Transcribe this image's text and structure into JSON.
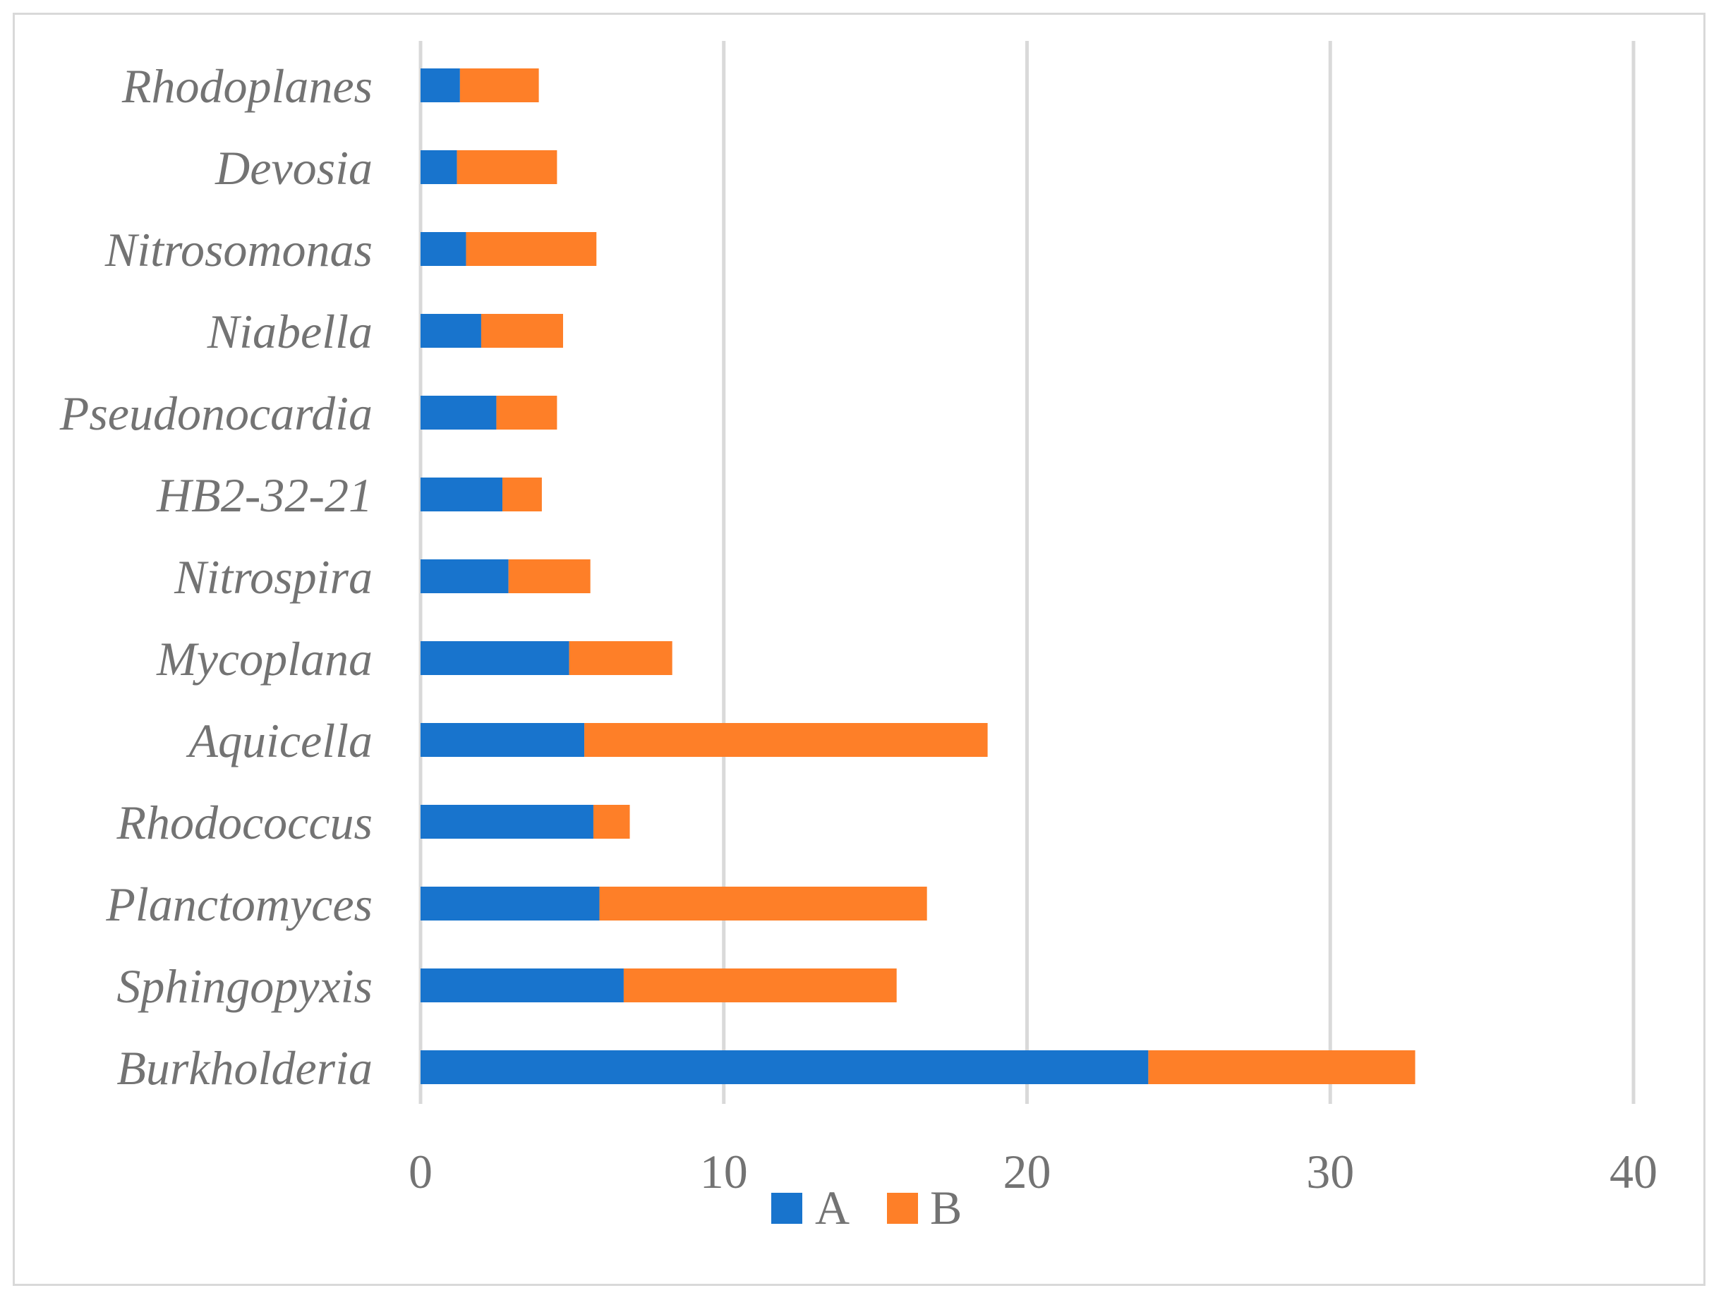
{
  "chart_data": {
    "type": "bar",
    "orientation": "horizontal",
    "stacked": true,
    "title": "",
    "xlabel": "",
    "ylabel": "",
    "categories": [
      "Burkholderia",
      "Sphingopyxis",
      "Planctomyces",
      "Rhodococcus",
      "Aquicella",
      "Mycoplana",
      "Nitrospira",
      "HB2-32-21",
      "Pseudonocardia",
      "Niabella",
      "Nitrosomonas",
      "Devosia",
      "Rhodoplanes"
    ],
    "series": [
      {
        "name": "A",
        "color": "#1874cd",
        "values": [
          24.0,
          6.7,
          5.9,
          5.7,
          5.4,
          4.9,
          2.9,
          2.7,
          2.5,
          2.0,
          1.5,
          1.2,
          1.3
        ]
      },
      {
        "name": "B",
        "color": "#fe7f28",
        "values": [
          8.8,
          9.0,
          10.8,
          1.2,
          13.3,
          3.4,
          2.7,
          1.3,
          2.0,
          2.7,
          4.3,
          3.3,
          2.6
        ]
      }
    ],
    "xlim": [
      0,
      40
    ],
    "x_ticks": [
      "0",
      "10",
      "20",
      "30",
      "40"
    ],
    "grid": true,
    "legend_position": "bottom"
  }
}
